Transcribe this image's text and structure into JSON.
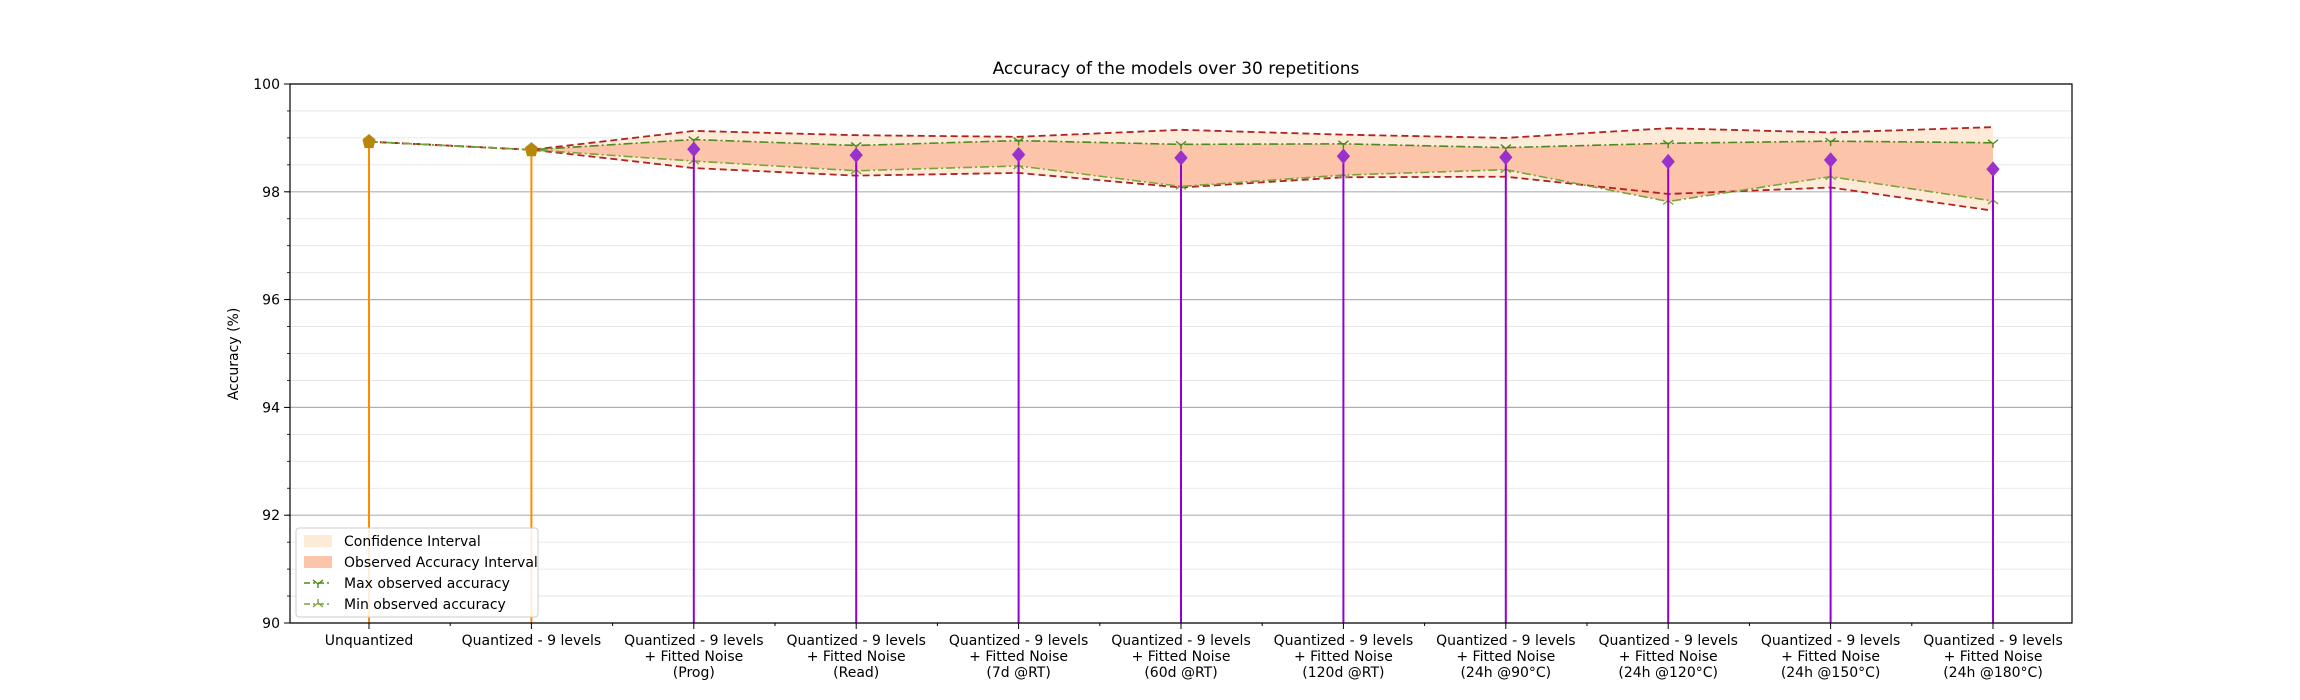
{
  "chart_data": {
    "type": "line",
    "title": "Accuracy of the models over 30 repetitions",
    "xlabel": "",
    "ylabel": "Accuracy (%)",
    "ylim": [
      90,
      100
    ],
    "yticks": [
      "90",
      "92",
      "94",
      "96",
      "98",
      "100"
    ],
    "grid": true,
    "legend_position": "lower-left",
    "categories": [
      "Unquantized",
      "Quantized - 9 levels",
      "Quantized - 9 levels\n+ Fitted Noise\n(Prog)",
      "Quantized - 9 levels\n+ Fitted Noise\n(Read)",
      "Quantized - 9 levels\n+ Fitted Noise\n(7d @RT)",
      "Quantized - 9 levels\n+ Fitted Noise\n(60d @RT)",
      "Quantized - 9 levels\n+ Fitted Noise\n(120d @RT)",
      "Quantized - 9 levels\n+ Fitted Noise\n(24h @90°C)",
      "Quantized - 9 levels\n+ Fitted Noise\n(24h @120°C)",
      "Quantized - 9 levels\n+ Fitted Noise\n(24h @150°C)",
      "Quantized - 9 levels\n+ Fitted Noise\n(24h @180°C)"
    ],
    "series": [
      {
        "name": "Confidence Interval",
        "upper": [
          98.93,
          98.78,
          99.13,
          99.05,
          99.02,
          99.15,
          99.06,
          99.0,
          99.18,
          99.1,
          99.2
        ],
        "lower": [
          98.93,
          98.78,
          98.44,
          98.3,
          98.35,
          98.08,
          98.27,
          98.28,
          97.96,
          98.08,
          97.65
        ]
      },
      {
        "name": "Observed Accuracy Interval",
        "upper": [
          98.93,
          98.78,
          98.97,
          98.86,
          98.95,
          98.88,
          98.89,
          98.82,
          98.9,
          98.94,
          98.91
        ],
        "lower": [
          98.93,
          98.78,
          98.57,
          98.39,
          98.48,
          98.1,
          98.31,
          98.41,
          97.82,
          98.28,
          97.83
        ]
      },
      {
        "name": "Max observed accuracy",
        "values": [
          98.93,
          98.78,
          98.97,
          98.86,
          98.95,
          98.88,
          98.89,
          98.82,
          98.9,
          98.94,
          98.91
        ]
      },
      {
        "name": "Min observed accuracy",
        "values": [
          98.93,
          98.78,
          98.57,
          98.39,
          98.48,
          98.1,
          98.31,
          98.41,
          97.82,
          98.28,
          97.83
        ]
      },
      {
        "values": [
          98.93,
          98.78,
          98.79,
          98.68,
          98.69,
          98.63,
          98.66,
          98.64,
          98.56,
          98.59,
          98.42
        ]
      }
    ],
    "colors": {
      "confidence_fill": "#fdebd7",
      "observed_fill": "#fcc4a8",
      "ci_line": "#b22222",
      "max_line": "#4b8a1e",
      "min_line": "#7aa33a",
      "stem_unquantized": "#ff8c00",
      "stem_fitted": "#9400d3",
      "marker_unquantized": "#b8860b",
      "marker_fitted": "#9932cc"
    }
  }
}
